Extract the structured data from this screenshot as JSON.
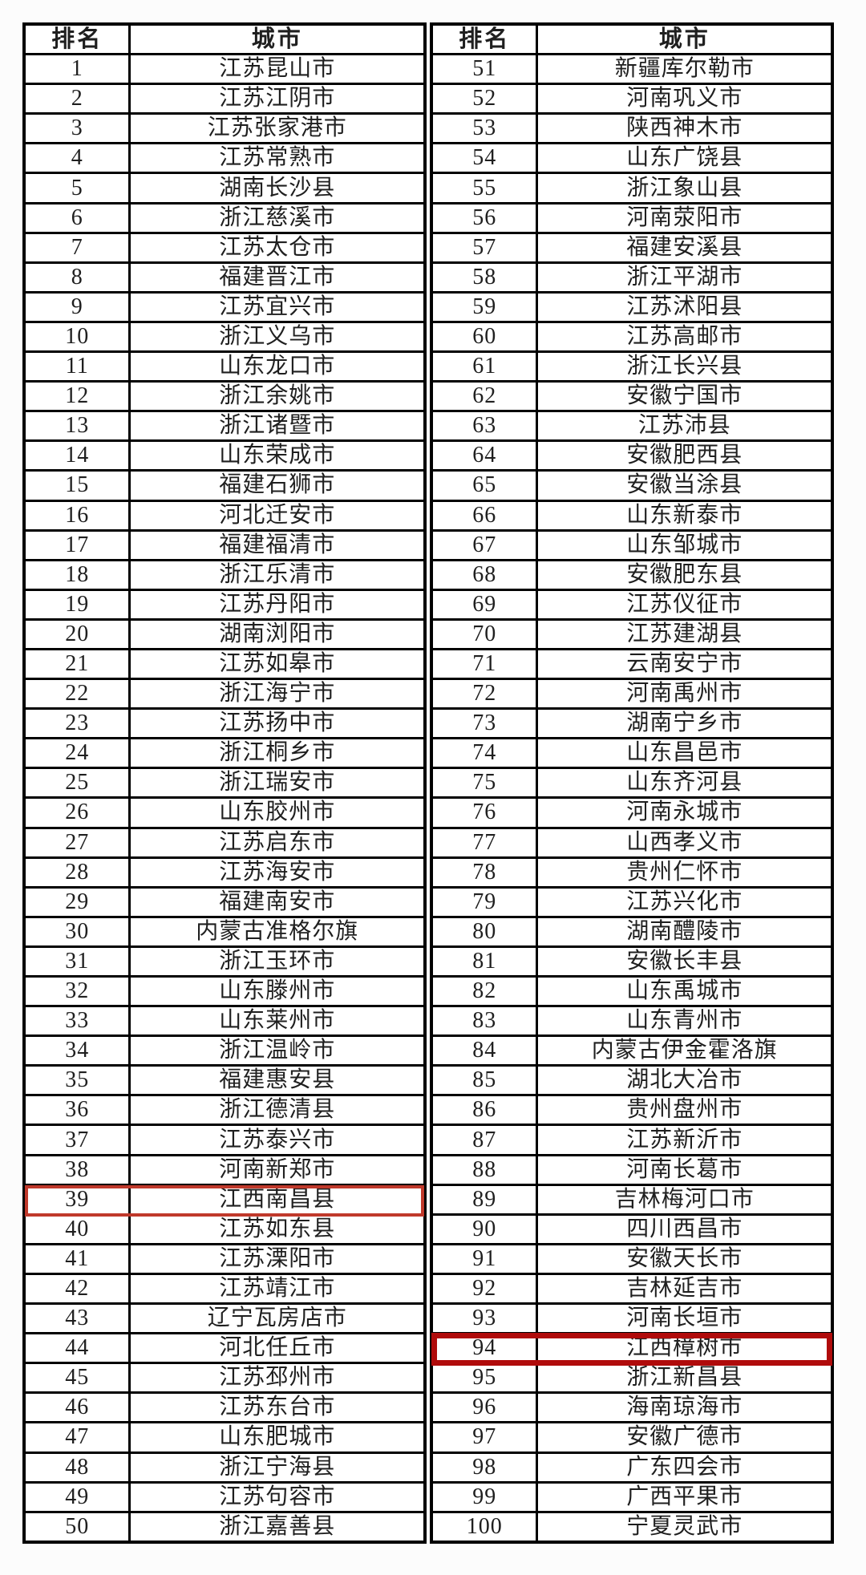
{
  "header": {
    "rank_label": "排名",
    "city_label": "城市"
  },
  "colors": {
    "grid_border": "#000000",
    "text": "#1f1f1f",
    "background": "#fcfcfc",
    "highlight_rank_39": "#c0392b",
    "highlight_rank_94": "#b00b0b"
  },
  "tables": [
    {
      "side": "left",
      "rows": [
        {
          "rank": "1",
          "city": "江苏昆山市"
        },
        {
          "rank": "2",
          "city": "江苏江阴市"
        },
        {
          "rank": "3",
          "city": "江苏张家港市"
        },
        {
          "rank": "4",
          "city": "江苏常熟市"
        },
        {
          "rank": "5",
          "city": "湖南长沙县"
        },
        {
          "rank": "6",
          "city": "浙江慈溪市"
        },
        {
          "rank": "7",
          "city": "江苏太仓市"
        },
        {
          "rank": "8",
          "city": "福建晋江市"
        },
        {
          "rank": "9",
          "city": "江苏宜兴市"
        },
        {
          "rank": "10",
          "city": "浙江义乌市"
        },
        {
          "rank": "11",
          "city": "山东龙口市"
        },
        {
          "rank": "12",
          "city": "浙江余姚市"
        },
        {
          "rank": "13",
          "city": "浙江诸暨市"
        },
        {
          "rank": "14",
          "city": "山东荣成市"
        },
        {
          "rank": "15",
          "city": "福建石狮市"
        },
        {
          "rank": "16",
          "city": "河北迁安市"
        },
        {
          "rank": "17",
          "city": "福建福清市"
        },
        {
          "rank": "18",
          "city": "浙江乐清市"
        },
        {
          "rank": "19",
          "city": "江苏丹阳市"
        },
        {
          "rank": "20",
          "city": "湖南浏阳市"
        },
        {
          "rank": "21",
          "city": "江苏如皋市"
        },
        {
          "rank": "22",
          "city": "浙江海宁市"
        },
        {
          "rank": "23",
          "city": "江苏扬中市"
        },
        {
          "rank": "24",
          "city": "浙江桐乡市"
        },
        {
          "rank": "25",
          "city": "浙江瑞安市"
        },
        {
          "rank": "26",
          "city": "山东胶州市"
        },
        {
          "rank": "27",
          "city": "江苏启东市"
        },
        {
          "rank": "28",
          "city": "江苏海安市"
        },
        {
          "rank": "29",
          "city": "福建南安市"
        },
        {
          "rank": "30",
          "city": "内蒙古准格尔旗"
        },
        {
          "rank": "31",
          "city": "浙江玉环市"
        },
        {
          "rank": "32",
          "city": "山东滕州市"
        },
        {
          "rank": "33",
          "city": "山东莱州市"
        },
        {
          "rank": "34",
          "city": "浙江温岭市"
        },
        {
          "rank": "35",
          "city": "福建惠安县"
        },
        {
          "rank": "36",
          "city": "浙江德清县"
        },
        {
          "rank": "37",
          "city": "江苏泰兴市"
        },
        {
          "rank": "38",
          "city": "河南新郑市"
        },
        {
          "rank": "39",
          "city": "江西南昌县",
          "highlight": "medium"
        },
        {
          "rank": "40",
          "city": "江苏如东县"
        },
        {
          "rank": "41",
          "city": "江苏溧阳市"
        },
        {
          "rank": "42",
          "city": "江苏靖江市"
        },
        {
          "rank": "43",
          "city": "辽宁瓦房店市"
        },
        {
          "rank": "44",
          "city": "河北任丘市"
        },
        {
          "rank": "45",
          "city": "江苏邳州市"
        },
        {
          "rank": "46",
          "city": "江苏东台市"
        },
        {
          "rank": "47",
          "city": "山东肥城市"
        },
        {
          "rank": "48",
          "city": "浙江宁海县"
        },
        {
          "rank": "49",
          "city": "江苏句容市"
        },
        {
          "rank": "50",
          "city": "浙江嘉善县"
        }
      ]
    },
    {
      "side": "right",
      "rows": [
        {
          "rank": "51",
          "city": "新疆库尔勒市"
        },
        {
          "rank": "52",
          "city": "河南巩义市"
        },
        {
          "rank": "53",
          "city": "陕西神木市"
        },
        {
          "rank": "54",
          "city": "山东广饶县"
        },
        {
          "rank": "55",
          "city": "浙江象山县"
        },
        {
          "rank": "56",
          "city": "河南荥阳市"
        },
        {
          "rank": "57",
          "city": "福建安溪县"
        },
        {
          "rank": "58",
          "city": "浙江平湖市"
        },
        {
          "rank": "59",
          "city": "江苏沭阳县"
        },
        {
          "rank": "60",
          "city": "江苏高邮市"
        },
        {
          "rank": "61",
          "city": "浙江长兴县"
        },
        {
          "rank": "62",
          "city": "安徽宁国市"
        },
        {
          "rank": "63",
          "city": "江苏沛县"
        },
        {
          "rank": "64",
          "city": "安徽肥西县"
        },
        {
          "rank": "65",
          "city": "安徽当涂县"
        },
        {
          "rank": "66",
          "city": "山东新泰市"
        },
        {
          "rank": "67",
          "city": "山东邹城市"
        },
        {
          "rank": "68",
          "city": "安徽肥东县"
        },
        {
          "rank": "69",
          "city": "江苏仪征市"
        },
        {
          "rank": "70",
          "city": "江苏建湖县"
        },
        {
          "rank": "71",
          "city": "云南安宁市"
        },
        {
          "rank": "72",
          "city": "河南禹州市"
        },
        {
          "rank": "73",
          "city": "湖南宁乡市"
        },
        {
          "rank": "74",
          "city": "山东昌邑市"
        },
        {
          "rank": "75",
          "city": "山东齐河县"
        },
        {
          "rank": "76",
          "city": "河南永城市"
        },
        {
          "rank": "77",
          "city": "山西孝义市"
        },
        {
          "rank": "78",
          "city": "贵州仁怀市"
        },
        {
          "rank": "79",
          "city": "江苏兴化市"
        },
        {
          "rank": "80",
          "city": "湖南醴陵市"
        },
        {
          "rank": "81",
          "city": "安徽长丰县"
        },
        {
          "rank": "82",
          "city": "山东禹城市"
        },
        {
          "rank": "83",
          "city": "山东青州市"
        },
        {
          "rank": "84",
          "city": "内蒙古伊金霍洛旗"
        },
        {
          "rank": "85",
          "city": "湖北大冶市"
        },
        {
          "rank": "86",
          "city": "贵州盘州市"
        },
        {
          "rank": "87",
          "city": "江苏新沂市"
        },
        {
          "rank": "88",
          "city": "河南长葛市"
        },
        {
          "rank": "89",
          "city": "吉林梅河口市"
        },
        {
          "rank": "90",
          "city": "四川西昌市"
        },
        {
          "rank": "91",
          "city": "安徽天长市"
        },
        {
          "rank": "92",
          "city": "吉林延吉市"
        },
        {
          "rank": "93",
          "city": "河南长垣市"
        },
        {
          "rank": "94",
          "city": "江西樟树市",
          "highlight": "thick"
        },
        {
          "rank": "95",
          "city": "浙江新昌县"
        },
        {
          "rank": "96",
          "city": "海南琼海市"
        },
        {
          "rank": "97",
          "city": "安徽广德市"
        },
        {
          "rank": "98",
          "city": "广东四会市"
        },
        {
          "rank": "99",
          "city": "广西平果市"
        },
        {
          "rank": "100",
          "city": "宁夏灵武市"
        }
      ]
    }
  ]
}
